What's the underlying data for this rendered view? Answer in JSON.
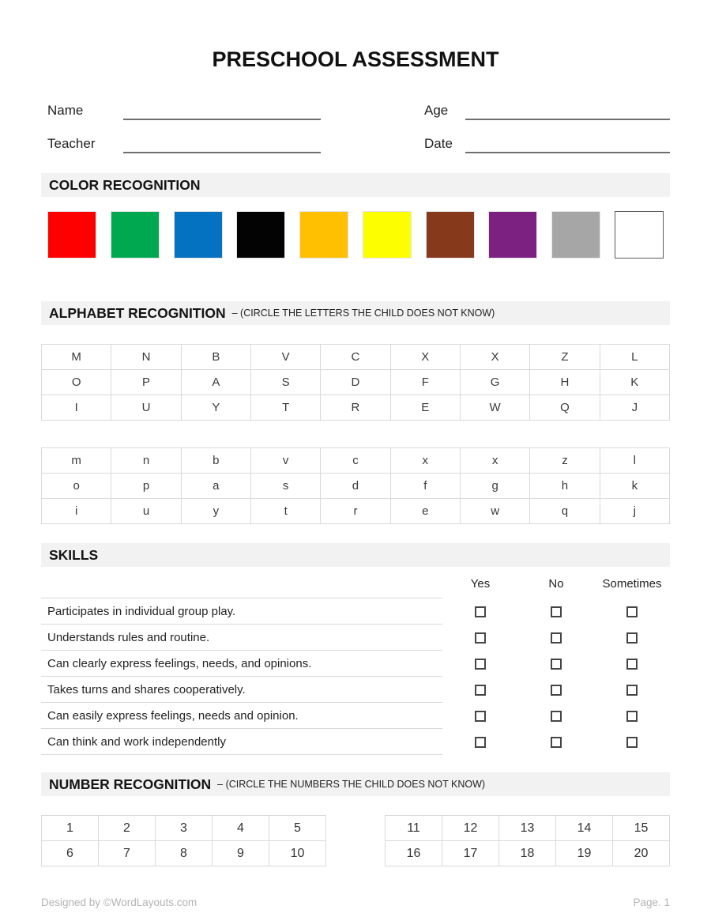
{
  "title": "PRESCHOOL ASSESSMENT",
  "fields": {
    "name": {
      "label": "Name",
      "value": ""
    },
    "age": {
      "label": "Age",
      "value": ""
    },
    "teacher": {
      "label": "Teacher",
      "value": ""
    },
    "date": {
      "label": "Date",
      "value": ""
    }
  },
  "color_recognition": {
    "heading": "COLOR RECOGNITION",
    "swatches": [
      {
        "name": "red",
        "hex": "#FE0000"
      },
      {
        "name": "green",
        "hex": "#00A84F"
      },
      {
        "name": "blue",
        "hex": "#0571C1"
      },
      {
        "name": "black",
        "hex": "#030303"
      },
      {
        "name": "orange",
        "hex": "#FFC001"
      },
      {
        "name": "yellow",
        "hex": "#FDFF00"
      },
      {
        "name": "brown",
        "hex": "#86391B"
      },
      {
        "name": "purple",
        "hex": "#7C2182"
      },
      {
        "name": "gray",
        "hex": "#A6A6A6"
      },
      {
        "name": "white",
        "hex": "#FFFFFF"
      }
    ]
  },
  "alphabet_recognition": {
    "heading": "ALPHABET RECOGNITION",
    "subheading": "– (CIRCLE THE LETTERS THE CHILD DOES NOT KNOW)",
    "uppercase_rows": [
      [
        "M",
        "N",
        "B",
        "V",
        "C",
        "X",
        "X",
        "Z",
        "L"
      ],
      [
        "O",
        "P",
        "A",
        "S",
        "D",
        "F",
        "G",
        "H",
        "K"
      ],
      [
        "I",
        "U",
        "Y",
        "T",
        "R",
        "E",
        "W",
        "Q",
        "J"
      ]
    ],
    "lowercase_rows": [
      [
        "m",
        "n",
        "b",
        "v",
        "c",
        "x",
        "x",
        "z",
        "l"
      ],
      [
        "o",
        "p",
        "a",
        "s",
        "d",
        "f",
        "g",
        "h",
        "k"
      ],
      [
        "i",
        "u",
        "y",
        "t",
        "r",
        "e",
        "w",
        "q",
        "j"
      ]
    ]
  },
  "skills": {
    "heading": "SKILLS",
    "columns": [
      "Yes",
      "No",
      "Sometimes"
    ],
    "items": [
      "Participates in individual group play.",
      "Understands rules and routine.",
      "Can clearly express feelings, needs, and opinions.",
      "Takes turns and shares cooperatively.",
      "Can easily express feelings, needs and opinion.",
      "Can think and work independently"
    ]
  },
  "number_recognition": {
    "heading": "NUMBER RECOGNITION",
    "subheading": "– (CIRCLE THE NUMBERS THE CHILD DOES NOT KNOW)",
    "left_table_rows": [
      [
        "1",
        "2",
        "3",
        "4",
        "5"
      ],
      [
        "6",
        "7",
        "8",
        "9",
        "10"
      ]
    ],
    "right_table_rows": [
      [
        "11",
        "12",
        "13",
        "14",
        "15"
      ],
      [
        "16",
        "17",
        "18",
        "19",
        "20"
      ]
    ]
  },
  "footer": {
    "left": "Designed by ©WordLayouts.com",
    "right": "Page. 1"
  },
  "ui_colors": {
    "section_bar_bg": "#F2F2F2",
    "table_border": "#D9D9D9",
    "field_line": "#6E6E6E",
    "footer_text": "#B3B3B3"
  }
}
